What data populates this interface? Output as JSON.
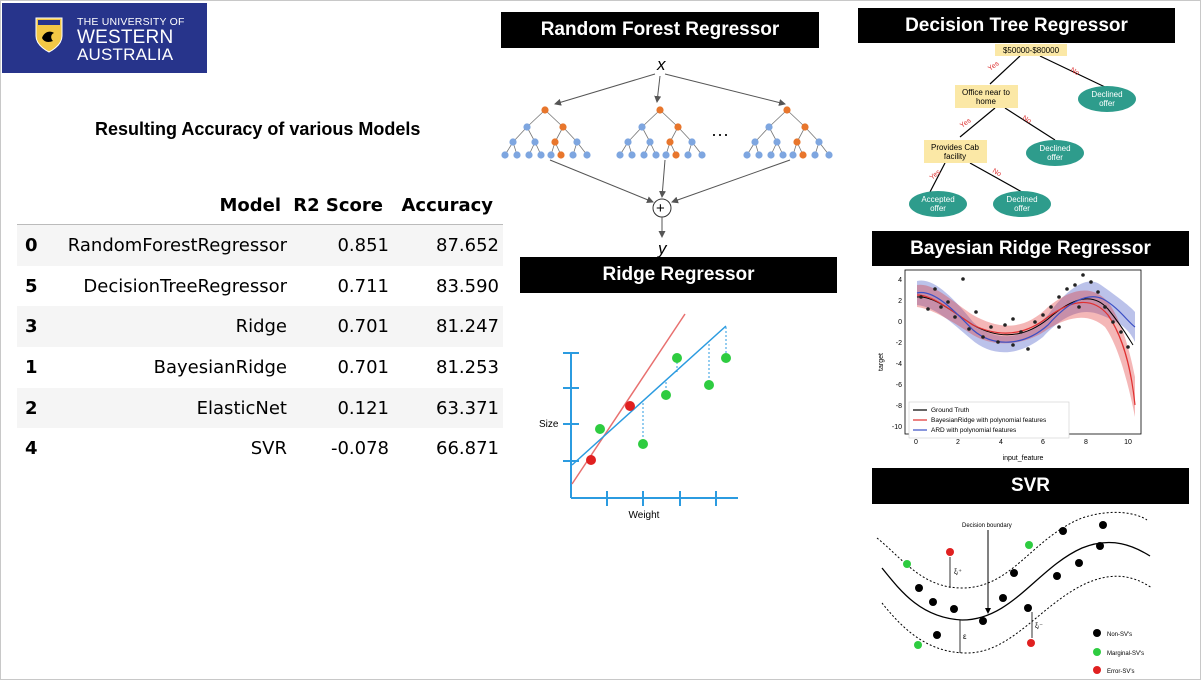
{
  "logo": {
    "line1": "THE UNIVERSITY OF",
    "line2": "WESTERN",
    "line3": "AUSTRALIA"
  },
  "subtitle": "Resulting Accuracy of various Models",
  "table": {
    "headers": [
      "",
      "Model",
      "R2 Score",
      "Accuracy"
    ],
    "rows": [
      {
        "index": "0",
        "model": "RandomForestRegressor",
        "r2": "0.851",
        "accuracy": "87.652"
      },
      {
        "index": "5",
        "model": "DecisionTreeRegressor",
        "r2": "0.711",
        "accuracy": "83.590"
      },
      {
        "index": "3",
        "model": "Ridge",
        "r2": "0.701",
        "accuracy": "81.247"
      },
      {
        "index": "1",
        "model": "BayesianRidge",
        "r2": "0.701",
        "accuracy": "81.253"
      },
      {
        "index": "2",
        "model": "ElasticNet",
        "r2": "0.121",
        "accuracy": "63.371"
      },
      {
        "index": "4",
        "model": "SVR",
        "r2": "-0.078",
        "accuracy": "66.871"
      }
    ]
  },
  "titles": {
    "random_forest": "Random Forest Regressor",
    "decision_tree": "Decision Tree Regressor",
    "ridge": "Ridge Regressor",
    "bayesian": "Bayesian Ridge Regressor",
    "svr": "SVR"
  },
  "rf_diagram": {
    "input": "x",
    "output": "y",
    "ellipsis": "···",
    "combine": "+"
  },
  "dt_diagram": {
    "root": "$50000-$80000",
    "node1": [
      "Office near to",
      "home"
    ],
    "node2": [
      "Provides Cab",
      "facility"
    ],
    "declined": [
      "Declined",
      "offer"
    ],
    "accepted": [
      "Accepted",
      "offer"
    ],
    "yes": "Yes",
    "no": "No"
  },
  "ridge_diagram": {
    "xlabel": "Weight",
    "ylabel": "Size"
  },
  "bayes_chart": {
    "ylabel": "target",
    "xlabel": "input_feature",
    "xticks": [
      "0",
      "2",
      "4",
      "6",
      "8",
      "10"
    ],
    "yticks": [
      "4",
      "2",
      "0",
      "-2",
      "-4",
      "-6",
      "-8",
      "-10"
    ],
    "legend": [
      "Ground Truth",
      "BayesianRidge with polynomial features",
      "ARD with polynomial features"
    ]
  },
  "svr_diagram": {
    "boundary_label": "Decision boundary",
    "xi_plus": "ξᵢ⁺",
    "xi_minus": "ξᵢ⁻",
    "epsilon": "ε",
    "legend": [
      "Non-SV's",
      "Marginal-SV's",
      "Error-SV's"
    ]
  },
  "colors": {
    "logo_bg": "#27348b",
    "banner_bg": "#000000",
    "tree_leaf": "#2e9c8c",
    "tree_node": "#fbe8a6",
    "forest_node": "#7ea6e0",
    "forest_active": "#e8762c",
    "ridge_line": "#e8706f",
    "ls_line": "#2b9be0",
    "green_point": "#2ecc40",
    "red_point": "#e02020"
  }
}
